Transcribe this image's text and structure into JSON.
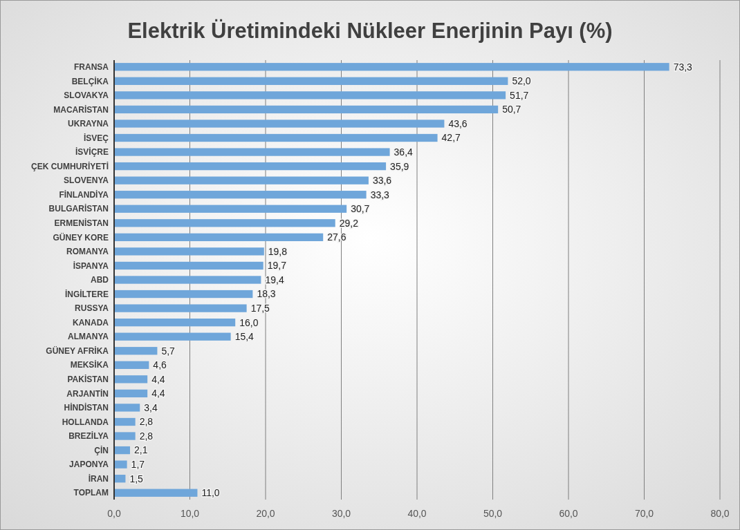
{
  "chart_data": {
    "type": "bar",
    "orientation": "horizontal",
    "title": "Elektrik Üretimindeki Nükleer Enerjinin Payı (%)",
    "categories": [
      "FRANSA",
      "BELÇİKA",
      "SLOVAKYA",
      "MACARİSTAN",
      "UKRAYNA",
      "İSVEÇ",
      "İSVİÇRE",
      "ÇEK CUMHURİYETİ",
      "SLOVENYA",
      "FİNLANDİYA",
      "BULGARİSTAN",
      "ERMENİSTAN",
      "GÜNEY KORE",
      "ROMANYA",
      "İSPANYA",
      "ABD",
      "İNGİLTERE",
      "RUSSYA",
      "KANADA",
      "ALMANYA",
      "GÜNEY AFRİKA",
      "MEKSİKA",
      "PAKİSTAN",
      "ARJANTİN",
      "HİNDİSTAN",
      "HOLLANDA",
      "BREZİLYA",
      "ÇİN",
      "JAPONYA",
      "İRAN",
      "TOPLAM"
    ],
    "values": [
      73.3,
      52.0,
      51.7,
      50.7,
      43.6,
      42.7,
      36.4,
      35.9,
      33.6,
      33.3,
      30.7,
      29.2,
      27.6,
      19.8,
      19.7,
      19.4,
      18.3,
      17.5,
      16.0,
      15.4,
      5.7,
      4.6,
      4.4,
      4.4,
      3.4,
      2.8,
      2.8,
      2.1,
      1.7,
      1.5,
      11.0
    ],
    "value_labels": [
      "73,3",
      "52,0",
      "51,7",
      "50,7",
      "43,6",
      "42,7",
      "36,4",
      "35,9",
      "33,6",
      "33,3",
      "30,7",
      "29,2",
      "27,6",
      "19,8",
      "19,7",
      "19,4",
      "18,3",
      "17,5",
      "16,0",
      "15,4",
      "5,7",
      "4,6",
      "4,4",
      "4,4",
      "3,4",
      "2,8",
      "2,8",
      "2,1",
      "1,7",
      "1,5",
      "11,0"
    ],
    "color": "#6fa6da",
    "xlim": [
      0,
      80
    ],
    "xticks": [
      {
        "value": 0,
        "label": "0,0"
      },
      {
        "value": 10,
        "label": "10,0"
      },
      {
        "value": 20,
        "label": "20,0"
      },
      {
        "value": 30,
        "label": "30,0"
      },
      {
        "value": 40,
        "label": "40,0"
      },
      {
        "value": 50,
        "label": "50,0"
      },
      {
        "value": 60,
        "label": "60,0"
      },
      {
        "value": 70,
        "label": "70,0"
      },
      {
        "value": 80,
        "label": "80,0"
      }
    ],
    "grid": "x"
  }
}
